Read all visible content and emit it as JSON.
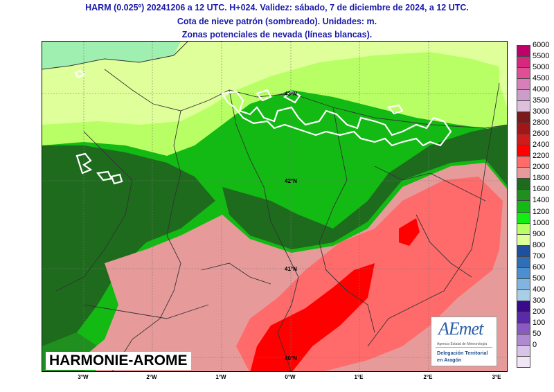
{
  "title": {
    "line1": "HARM (0.025º) 20241206 a 12 UTC. H+024. Validez: sábado, 7 de diciembre de 2024, a 12 UTC.",
    "line2": "Cota de nieve patrón (sombreado). Unidades: m.",
    "line3": "Zonas potenciales de nevada (líneas blancas)."
  },
  "map": {
    "lon_labels": [
      "3°W",
      "2°W",
      "1°W",
      "0°W",
      "1°E",
      "2°E",
      "3°E"
    ],
    "lat_labels": [
      "43°N",
      "42°N",
      "41°N",
      "40°N"
    ],
    "brand": "HARMONIE-AROME",
    "colors": {
      "snow_lines": "#ffffff",
      "borders": "#333333"
    }
  },
  "logo": {
    "name": "AEmet",
    "subtitle": "Agencia Estatal de Meteorología",
    "delegation_line1": "Delegación Territorial",
    "delegation_line2": "en Aragón"
  },
  "colorbar": {
    "levels": [
      "6000",
      "5500",
      "5000",
      "4500",
      "4000",
      "3500",
      "3000",
      "2800",
      "2600",
      "2400",
      "2200",
      "2000",
      "1800",
      "1600",
      "1400",
      "1200",
      "1000",
      "900",
      "800",
      "700",
      "600",
      "500",
      "400",
      "300",
      "200",
      "100",
      "50",
      "0"
    ],
    "colors": [
      "#c0006a",
      "#d6287e",
      "#e04f96",
      "#d77fb8",
      "#cc9ccb",
      "#dcc0dc",
      "#7a1a1a",
      "#a11717",
      "#d11a1a",
      "#ff0000",
      "#ff6a6a",
      "#e79a9a",
      "#1e6b1e",
      "#1f8f1f",
      "#13ba13",
      "#11ee11",
      "#b8ff66",
      "#dfff9a",
      "#1f4f9f",
      "#2e6fb6",
      "#4b8fd0",
      "#80b5e0",
      "#a9cfe8",
      "#3a0a8a",
      "#5a2aa8",
      "#8a5ac0",
      "#b08ad0",
      "#d8c4e8",
      "#f1e6f6"
    ]
  }
}
